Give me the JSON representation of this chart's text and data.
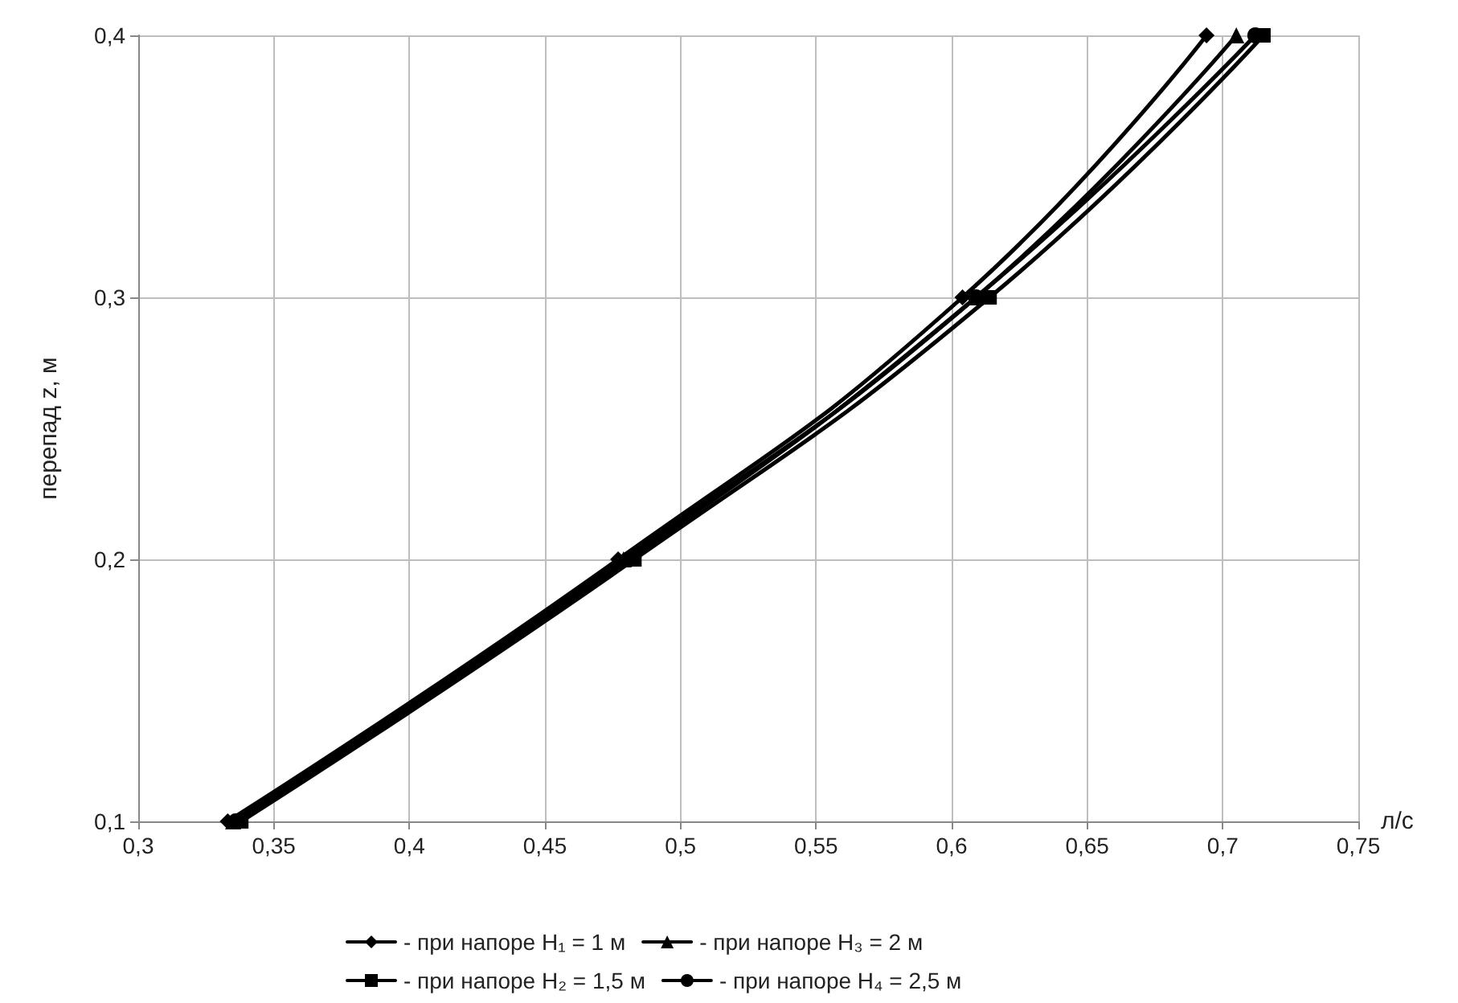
{
  "chart_data": {
    "type": "line",
    "xlabel": "л/с",
    "ylabel": "перепад z, м",
    "xlim": [
      0.3,
      0.75
    ],
    "ylim": [
      0.1,
      0.4
    ],
    "xticks": [
      {
        "value": 0.3,
        "label": "0,3"
      },
      {
        "value": 0.35,
        "label": "0,35"
      },
      {
        "value": 0.4,
        "label": "0,4"
      },
      {
        "value": 0.45,
        "label": "0,45"
      },
      {
        "value": 0.5,
        "label": "0,5"
      },
      {
        "value": 0.55,
        "label": "0,55"
      },
      {
        "value": 0.6,
        "label": "0,6"
      },
      {
        "value": 0.65,
        "label": "0,65"
      },
      {
        "value": 0.7,
        "label": "0,7"
      },
      {
        "value": 0.75,
        "label": "0,75"
      }
    ],
    "yticks": [
      {
        "value": 0.1,
        "label": "0,1"
      },
      {
        "value": 0.2,
        "label": "0,2"
      },
      {
        "value": 0.3,
        "label": "0,3"
      },
      {
        "value": 0.4,
        "label": "0,4"
      }
    ],
    "grid": true,
    "legend": "bottom",
    "line_style": "solid",
    "series": [
      {
        "name": "- при напоре H₁ = 1 м",
        "color": "#000000",
        "marker": "diamond",
        "x": [
          0.333,
          0.477,
          0.604,
          0.694
        ],
        "values": [
          0.1,
          0.2,
          0.3,
          0.4
        ]
      },
      {
        "name": "- при напоре H₂ = 1,5 м",
        "color": "#000000",
        "marker": "square",
        "x": [
          0.338,
          0.483,
          0.614,
          0.715
        ],
        "values": [
          0.1,
          0.2,
          0.3,
          0.4
        ]
      },
      {
        "name": "- при напоре H₃ = 2 м",
        "color": "#000000",
        "marker": "triangle",
        "x": [
          0.335,
          0.479,
          0.609,
          0.705
        ],
        "values": [
          0.1,
          0.2,
          0.3,
          0.4
        ]
      },
      {
        "name": "- при напоре H₄ = 2,5 м",
        "color": "#000000",
        "marker": "circle",
        "x": [
          0.336,
          0.481,
          0.609,
          0.712
        ],
        "values": [
          0.1,
          0.2,
          0.3,
          0.4
        ]
      }
    ]
  }
}
